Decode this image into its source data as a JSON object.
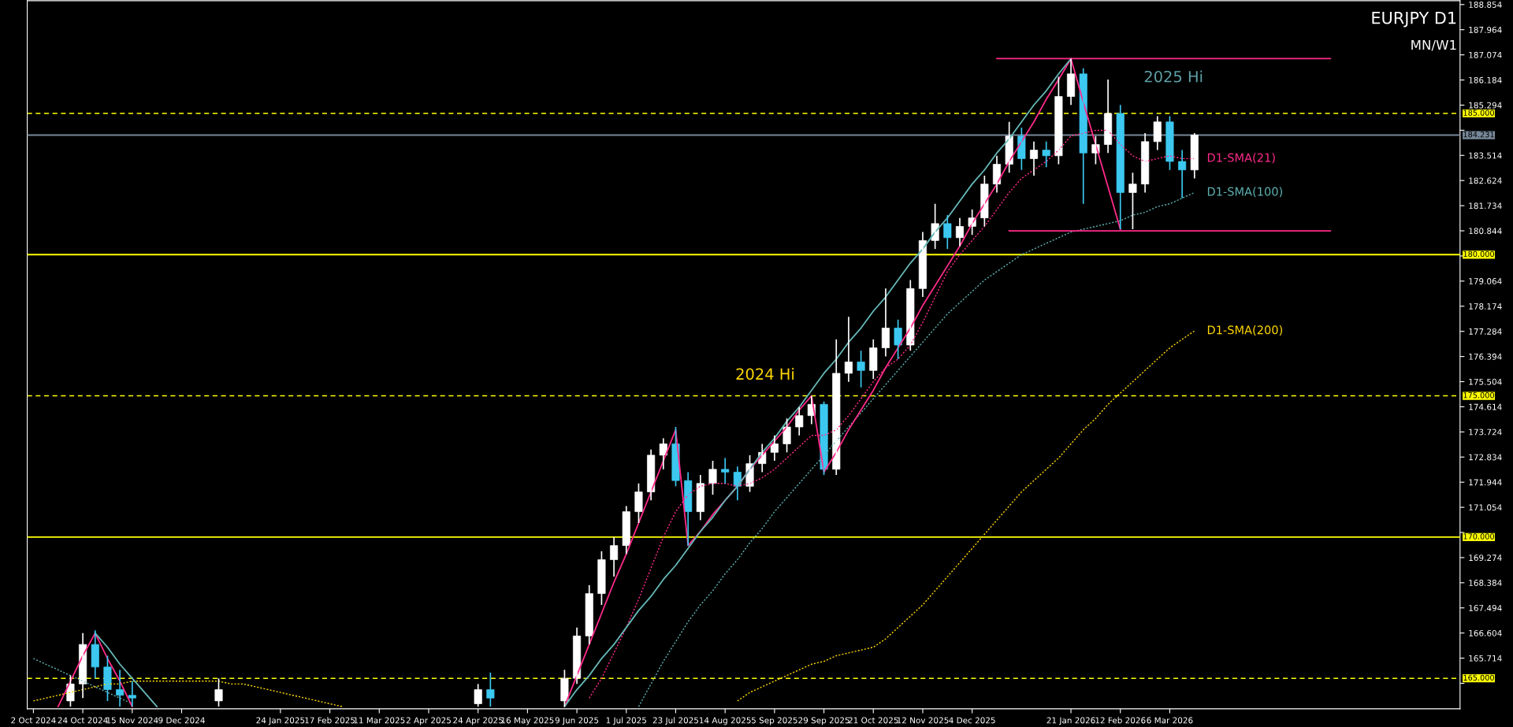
{
  "chart_data": {
    "type": "candlestick",
    "categories": [
      "2 Oct 2024",
      null,
      null,
      null,
      "24 Oct 2024",
      null,
      null,
      null,
      "15 Nov 2024",
      null,
      null,
      null,
      "9 Dec 2024",
      null,
      null,
      null,
      null,
      null,
      null,
      null,
      "24 Jan 2025",
      null,
      null,
      null,
      "17 Feb 2025",
      null,
      null,
      null,
      "11 Mar 2025",
      null,
      null,
      null,
      "2 Apr 2025",
      null,
      null,
      null,
      "24 Apr 2025",
      null,
      null,
      null,
      "16 May 2025",
      null,
      null,
      null,
      "9 Jun 2025",
      null,
      null,
      null,
      "1 Jul 2025",
      null,
      null,
      null,
      "23 Jul 2025",
      null,
      null,
      null,
      "14 Aug 2025",
      null,
      null,
      null,
      "5 Sep 2025",
      null,
      null,
      null,
      "29 Sep 2025",
      null,
      null,
      null,
      "21 Oct 2025",
      null,
      null,
      null,
      "12 Nov 2025",
      null,
      null,
      null,
      "4 Dec 2025",
      null,
      null,
      null,
      null,
      null,
      null,
      null,
      "21 Jan 2026",
      null,
      null,
      null,
      "12 Feb 2026",
      null,
      null,
      null,
      "6 Mar 2026",
      null,
      null,
      null,
      null,
      null,
      null,
      null,
      null,
      null,
      null,
      null,
      null,
      null,
      null,
      null,
      null,
      null,
      null,
      null,
      null,
      null,
      null,
      null
    ],
    "ohlc": [
      null,
      null,
      null,
      [
        164.2,
        165.1,
        164.0,
        164.8
      ],
      [
        164.8,
        166.6,
        164.3,
        166.2
      ],
      [
        166.2,
        166.7,
        165.0,
        165.4
      ],
      [
        165.4,
        165.8,
        164.2,
        164.6
      ],
      [
        164.6,
        165.3,
        164.0,
        164.4
      ],
      [
        164.4,
        164.9,
        164.0,
        164.3
      ],
      null,
      null,
      null,
      null,
      null,
      null,
      [
        164.2,
        165.0,
        164.0,
        164.6
      ],
      null,
      null,
      null,
      null,
      null,
      null,
      null,
      null,
      null,
      null,
      null,
      null,
      null,
      null,
      null,
      null,
      null,
      null,
      null,
      null,
      [
        164.1,
        164.8,
        164.0,
        164.6
      ],
      [
        164.6,
        165.2,
        164.0,
        164.3
      ],
      null,
      null,
      null,
      null,
      null,
      [
        164.2,
        165.3,
        164.0,
        165.0
      ],
      [
        165.0,
        166.8,
        164.8,
        166.5
      ],
      [
        166.5,
        168.3,
        166.2,
        168.0
      ],
      [
        168.0,
        169.5,
        167.6,
        169.2
      ],
      [
        169.2,
        170.0,
        168.6,
        169.7
      ],
      [
        169.7,
        171.1,
        169.4,
        170.9
      ],
      [
        170.9,
        171.9,
        170.5,
        171.6
      ],
      [
        171.6,
        173.1,
        171.3,
        172.9
      ],
      [
        172.9,
        173.5,
        172.4,
        173.3
      ],
      [
        173.3,
        173.9,
        171.8,
        172.0
      ],
      [
        172.0,
        172.3,
        169.7,
        170.9
      ],
      [
        170.9,
        172.2,
        170.6,
        171.9
      ],
      [
        171.9,
        172.7,
        171.5,
        172.4
      ],
      [
        172.4,
        172.8,
        171.9,
        172.3
      ],
      [
        172.3,
        172.5,
        171.3,
        171.8
      ],
      [
        171.8,
        172.9,
        171.6,
        172.6
      ],
      [
        172.6,
        173.3,
        172.3,
        173.0
      ],
      [
        173.0,
        173.6,
        172.7,
        173.3
      ],
      [
        173.3,
        174.2,
        173.0,
        173.9
      ],
      [
        173.9,
        174.6,
        173.6,
        174.3
      ],
      [
        174.3,
        175.0,
        174.0,
        174.7
      ],
      [
        174.7,
        174.8,
        172.2,
        172.4
      ],
      [
        172.4,
        177.0,
        172.2,
        175.8
      ],
      [
        175.8,
        177.8,
        175.5,
        176.2
      ],
      [
        176.2,
        176.6,
        175.3,
        175.9
      ],
      [
        175.9,
        177.0,
        175.6,
        176.7
      ],
      [
        176.7,
        178.8,
        176.4,
        177.4
      ],
      [
        177.4,
        177.7,
        176.3,
        176.8
      ],
      [
        176.8,
        179.1,
        176.6,
        178.8
      ],
      [
        178.8,
        180.8,
        178.5,
        180.5
      ],
      [
        180.5,
        181.8,
        180.2,
        181.1
      ],
      [
        181.1,
        181.4,
        180.2,
        180.6
      ],
      [
        180.6,
        181.3,
        180.3,
        181.0
      ],
      [
        181.0,
        181.6,
        180.7,
        181.3
      ],
      [
        181.3,
        182.8,
        181.0,
        182.5
      ],
      [
        182.5,
        183.5,
        182.2,
        183.2
      ],
      [
        183.2,
        184.7,
        182.9,
        184.2
      ],
      [
        184.2,
        184.5,
        183.0,
        183.4
      ],
      [
        183.4,
        184.0,
        182.8,
        183.7
      ],
      [
        183.7,
        184.0,
        183.1,
        183.5
      ],
      [
        183.5,
        186.3,
        183.2,
        185.6
      ],
      [
        185.6,
        186.94,
        185.3,
        186.4
      ],
      [
        186.4,
        186.6,
        181.8,
        183.6
      ],
      [
        183.6,
        184.2,
        183.2,
        183.9
      ],
      [
        183.9,
        186.2,
        183.6,
        185.0
      ],
      [
        185.0,
        185.3,
        180.9,
        182.2
      ],
      [
        182.2,
        182.9,
        180.9,
        182.5
      ],
      [
        182.5,
        184.3,
        182.2,
        184.0
      ],
      [
        184.0,
        184.9,
        183.7,
        184.7
      ],
      [
        184.7,
        184.9,
        183.0,
        183.3
      ],
      [
        183.3,
        183.7,
        182.0,
        183.0
      ],
      [
        183.0,
        184.3,
        182.7,
        184.231
      ],
      null,
      null,
      null,
      null,
      null,
      null,
      null,
      null,
      null,
      null,
      null,
      null,
      null,
      null,
      null,
      null,
      null,
      null,
      null,
      null,
      null
    ],
    "colors": [
      null,
      null,
      null,
      "#ffffff",
      "#ffffff",
      "#3cc8f0",
      "#3cc8f0",
      "#3cc8f0",
      "#3cc8f0",
      null,
      null,
      null,
      null,
      null,
      null,
      "#ffffff",
      null,
      null,
      null,
      null,
      null,
      null,
      null,
      null,
      null,
      null,
      null,
      null,
      null,
      null,
      null,
      null,
      null,
      null,
      null,
      null,
      "#ffffff",
      "#3cc8f0",
      null,
      null,
      null,
      null,
      null,
      "#ffffff",
      "#ffffff",
      "#ffffff",
      "#ffffff",
      "#ffffff",
      "#ffffff",
      "#ffffff",
      "#ffffff",
      "#ffffff",
      "#3cc8f0",
      "#3cc8f0",
      "#ffffff",
      "#ffffff",
      "#3cc8f0",
      "#3cc8f0",
      "#ffffff",
      "#ffffff",
      "#ffffff",
      "#ffffff",
      "#ffffff",
      "#ffffff",
      "#3cc8f0",
      "#ffffff",
      "#ffffff",
      "#3cc8f0",
      "#ffffff",
      "#ffffff",
      "#3cc8f0",
      "#ffffff",
      "#ffffff",
      "#ffffff",
      "#3cc8f0",
      "#ffffff",
      "#ffffff",
      "#ffffff",
      "#ffffff",
      "#ffffff",
      "#3cc8f0",
      "#ffffff",
      "#3cc8f0",
      "#ffffff",
      "#ffffff",
      "#3cc8f0",
      "#ffffff",
      "#ffffff",
      "#3cc8f0",
      "#ffffff",
      "#ffffff",
      "#ffffff",
      "#3cc8f0",
      "#3cc8f0",
      "#ffffff",
      null,
      null,
      null,
      null,
      null,
      null,
      null,
      null,
      null,
      null,
      null,
      null,
      null,
      null,
      null,
      null,
      null,
      null,
      null,
      null,
      null
    ],
    "series": [
      {
        "type": "line",
        "name": "D1-SMA(21)",
        "color": "#ff2a8a",
        "line_style": "dotted",
        "values": [
          null,
          null,
          null,
          null,
          null,
          null,
          null,
          null,
          null,
          null,
          null,
          null,
          null,
          null,
          null,
          null,
          null,
          null,
          null,
          null,
          null,
          null,
          null,
          null,
          null,
          null,
          null,
          null,
          null,
          null,
          null,
          null,
          null,
          null,
          null,
          null,
          null,
          null,
          null,
          null,
          null,
          null,
          null,
          null,
          null,
          164.3,
          165.0,
          165.9,
          166.8,
          167.8,
          168.9,
          170.0,
          170.9,
          171.5,
          171.8,
          171.9,
          171.9,
          171.8,
          171.9,
          172.1,
          172.4,
          172.8,
          173.2,
          173.6,
          173.6,
          173.8,
          174.3,
          174.9,
          175.5,
          176.0,
          176.3,
          176.8,
          177.6,
          178.5,
          179.4,
          180.0,
          180.5,
          181.0,
          181.6,
          182.2,
          182.7,
          183.0,
          183.3,
          183.7,
          184.2,
          184.3,
          184.4,
          184.4,
          183.9,
          183.5,
          183.3,
          183.4,
          183.5,
          183.4,
          183.4,
          null,
          null,
          null,
          null,
          null,
          null,
          null,
          null,
          null,
          null,
          null,
          null,
          null,
          null,
          null,
          null,
          null,
          null,
          null,
          null,
          null
        ]
      },
      {
        "type": "line",
        "name": "D1-SMA(100)",
        "color": "#5fb0b0",
        "line_style": "dotted",
        "values": [
          165.7,
          165.5,
          165.3,
          165.1,
          164.9,
          164.7,
          164.5,
          164.3,
          164.1,
          null,
          null,
          null,
          null,
          null,
          null,
          null,
          null,
          null,
          null,
          null,
          null,
          null,
          null,
          null,
          null,
          null,
          null,
          null,
          null,
          null,
          null,
          null,
          null,
          null,
          null,
          null,
          null,
          null,
          null,
          null,
          null,
          null,
          null,
          null,
          null,
          null,
          null,
          null,
          null,
          164.0,
          164.8,
          165.6,
          166.3,
          167.0,
          167.6,
          168.1,
          168.7,
          169.2,
          169.8,
          170.3,
          170.9,
          171.4,
          171.9,
          172.4,
          172.9,
          173.4,
          173.9,
          174.4,
          174.9,
          175.4,
          175.9,
          176.4,
          176.9,
          177.4,
          177.9,
          178.3,
          178.7,
          179.1,
          179.4,
          179.7,
          180.0,
          180.2,
          180.4,
          180.6,
          180.8,
          180.9,
          181.0,
          181.1,
          181.2,
          181.4,
          181.5,
          181.7,
          181.8,
          182.0,
          182.2,
          null,
          null,
          null,
          null,
          null,
          null,
          null,
          null,
          null,
          null,
          null,
          null,
          null,
          null,
          null,
          null,
          null,
          null,
          null,
          null,
          null
        ]
      },
      {
        "type": "line",
        "name": "D1-SMA(200)",
        "color": "#ffd700",
        "line_style": "dotted",
        "values": [
          164.2,
          164.3,
          164.4,
          164.5,
          164.6,
          164.7,
          164.8,
          164.8,
          164.9,
          164.9,
          164.9,
          164.9,
          164.9,
          164.9,
          164.9,
          164.9,
          164.8,
          164.8,
          164.7,
          164.6,
          164.5,
          164.4,
          164.3,
          164.2,
          164.1,
          164.0,
          null,
          null,
          null,
          null,
          null,
          null,
          null,
          null,
          null,
          null,
          null,
          null,
          null,
          null,
          null,
          null,
          null,
          null,
          null,
          null,
          null,
          null,
          null,
          null,
          null,
          null,
          null,
          null,
          null,
          null,
          null,
          164.2,
          164.5,
          164.7,
          164.9,
          165.1,
          165.3,
          165.5,
          165.6,
          165.8,
          165.9,
          166.0,
          166.1,
          166.4,
          166.8,
          167.2,
          167.6,
          168.1,
          168.6,
          169.1,
          169.6,
          170.1,
          170.6,
          171.1,
          171.6,
          172.0,
          172.4,
          172.8,
          173.3,
          173.8,
          174.2,
          174.7,
          175.1,
          175.5,
          175.9,
          176.3,
          176.7,
          177.0,
          177.3,
          null,
          null,
          null,
          null,
          null,
          null,
          null,
          null,
          null,
          null,
          null,
          null,
          null,
          null,
          null,
          null,
          null,
          null,
          null,
          null,
          null
        ]
      },
      {
        "type": "line",
        "color": "#ff2a8a",
        "line_style": "solid",
        "values": [
          null,
          null,
          164.0,
          164.9,
          165.8,
          166.6,
          165.7,
          164.9,
          164.0,
          null,
          null,
          null,
          null,
          null,
          null,
          null,
          null,
          null,
          null,
          null,
          null,
          null,
          null,
          null,
          null,
          null,
          null,
          null,
          null,
          null,
          null,
          null,
          null,
          null,
          null,
          null,
          null,
          null,
          null,
          null,
          null,
          null,
          null,
          164.0,
          165.1,
          166.2,
          167.3,
          168.4,
          169.4,
          170.5,
          171.6,
          172.7,
          173.8,
          169.7,
          170.2,
          170.8,
          171.3,
          171.8,
          172.4,
          172.9,
          173.4,
          173.9,
          174.5,
          175.0,
          172.3,
          173.0,
          173.8,
          174.5,
          175.2,
          176.0,
          176.7,
          177.4,
          178.2,
          178.9,
          179.6,
          180.3,
          181.1,
          181.8,
          182.5,
          183.3,
          184.0,
          184.7,
          185.5,
          186.2,
          186.94,
          185.4,
          183.9,
          182.4,
          180.9,
          null,
          null,
          null,
          null,
          null,
          null,
          null,
          null,
          null,
          null,
          null,
          null,
          null,
          null,
          null,
          null,
          null,
          null,
          null,
          null,
          null,
          null,
          null,
          null,
          null,
          null,
          null
        ]
      },
      {
        "type": "line",
        "color": "#66b8b8",
        "line_style": "solid",
        "values": [
          null,
          null,
          null,
          null,
          null,
          166.6,
          166.1,
          165.5,
          165.0,
          164.5,
          164.0,
          null,
          null,
          null,
          null,
          null,
          null,
          null,
          null,
          null,
          null,
          null,
          null,
          null,
          null,
          null,
          null,
          null,
          null,
          null,
          null,
          null,
          null,
          null,
          null,
          null,
          null,
          null,
          null,
          null,
          null,
          null,
          null,
          164.0,
          164.6,
          165.1,
          165.7,
          166.2,
          166.8,
          167.4,
          167.9,
          168.5,
          169.0,
          169.6,
          170.2,
          170.7,
          171.3,
          171.8,
          172.4,
          173.0,
          173.5,
          174.1,
          174.6,
          175.2,
          175.8,
          176.3,
          176.9,
          177.4,
          178.0,
          178.5,
          179.1,
          179.7,
          180.2,
          180.8,
          181.3,
          181.9,
          182.5,
          183.0,
          183.6,
          184.1,
          184.7,
          185.3,
          185.8,
          186.4,
          186.94,
          null,
          null,
          null,
          null,
          null,
          null,
          null,
          null,
          null,
          null,
          null,
          null,
          null,
          null,
          null,
          null,
          null,
          null,
          null,
          null,
          null,
          null,
          null,
          null,
          null,
          null,
          null,
          null,
          null,
          null,
          null
        ]
      },
      {
        "type": "line",
        "color": "#ff2a8a",
        "line_style": "solid",
        "values": [
          null,
          null,
          null,
          null,
          null,
          null,
          null,
          null,
          null,
          null,
          null,
          null,
          null,
          null,
          null,
          null,
          null,
          null,
          null,
          null,
          null,
          null,
          null,
          null,
          null,
          null,
          null,
          null,
          null,
          null,
          null,
          null,
          null,
          null,
          null,
          null,
          null,
          null,
          null,
          null,
          null,
          null,
          null,
          null,
          null,
          null,
          null,
          null,
          null,
          null,
          null,
          null,
          null,
          null,
          null,
          null,
          null,
          null,
          null,
          null,
          null,
          null,
          null,
          null,
          null,
          null,
          null,
          null,
          null,
          null,
          null,
          null,
          null,
          null,
          null,
          null,
          null,
          null,
          186.94,
          186.94,
          186.94,
          186.94,
          186.94,
          186.94,
          186.94,
          186.94,
          186.94,
          186.94,
          186.94,
          186.94,
          186.94,
          186.94,
          186.94,
          186.94,
          186.94,
          186.94,
          186.94,
          186.94,
          186.94,
          186.94,
          186.94,
          186.94,
          186.94,
          186.94,
          186.94,
          186.94,
          null,
          null,
          null,
          null,
          null,
          null,
          null,
          null,
          null,
          null
        ]
      },
      {
        "type": "line",
        "color": "#ff2a8a",
        "line_style": "solid",
        "values": [
          null,
          null,
          null,
          null,
          null,
          null,
          null,
          null,
          null,
          null,
          null,
          null,
          null,
          null,
          null,
          null,
          null,
          null,
          null,
          null,
          null,
          null,
          null,
          null,
          null,
          null,
          null,
          null,
          null,
          null,
          null,
          null,
          null,
          null,
          null,
          null,
          null,
          null,
          null,
          null,
          null,
          null,
          null,
          null,
          null,
          null,
          null,
          null,
          null,
          null,
          null,
          null,
          null,
          null,
          null,
          null,
          null,
          null,
          null,
          null,
          null,
          null,
          null,
          null,
          null,
          null,
          null,
          null,
          null,
          null,
          null,
          null,
          null,
          null,
          null,
          null,
          null,
          null,
          null,
          180.84,
          180.84,
          180.84,
          180.84,
          180.84,
          180.84,
          180.84,
          180.84,
          180.84,
          180.84,
          180.84,
          180.84,
          180.84,
          180.84,
          180.84,
          180.84,
          180.84,
          180.84,
          180.84,
          180.84,
          180.84,
          180.84,
          180.84,
          180.84,
          180.84,
          180.84,
          180.84,
          null,
          null,
          null,
          null,
          null,
          null,
          null,
          null,
          null,
          null
        ]
      }
    ],
    "ylim": [
      163.92,
      188.99
    ],
    "yticks": [
      188.854,
      187.964,
      187.074,
      186.184,
      185.294,
      {
        "value": 184.404,
        "label": null
      },
      183.514,
      182.624,
      181.734,
      180.844,
      {
        "value": 179.954,
        "label": null
      },
      179.064,
      178.174,
      177.284,
      176.394,
      175.504,
      174.614,
      173.724,
      172.834,
      171.944,
      171.054,
      {
        "value": 170.164,
        "label": null
      },
      169.274,
      168.384,
      167.494,
      166.604,
      165.714,
      {
        "value": 164.824,
        "label": null
      }
    ],
    "ref_lines": [
      {
        "axis": "y",
        "value": 185.0,
        "label": "185.000",
        "color": "#ffff00",
        "line_style": "dashed"
      },
      {
        "axis": "y",
        "value": 184.231,
        "label": "184.231",
        "color": "#778899",
        "line_style": "solid"
      },
      {
        "axis": "y",
        "value": 180.0,
        "label": "180.000",
        "color": "#ffff00",
        "line_style": "solid"
      },
      {
        "axis": "y",
        "value": 175.0,
        "label": "175.000",
        "color": "#ffff00",
        "line_style": "dashed"
      },
      {
        "axis": "y",
        "value": 170.0,
        "label": "170.000",
        "color": "#ffff00",
        "line_style": "solid"
      },
      {
        "axis": "y",
        "value": 165.0,
        "label": "165.000",
        "color": "#ffff00",
        "line_style": "dashed"
      }
    ],
    "annotations": [
      "EURJPY D1",
      "MN/W1",
      "2025 Hi",
      "2024 Hi"
    ],
    "grid": false,
    "legend": false
  }
}
